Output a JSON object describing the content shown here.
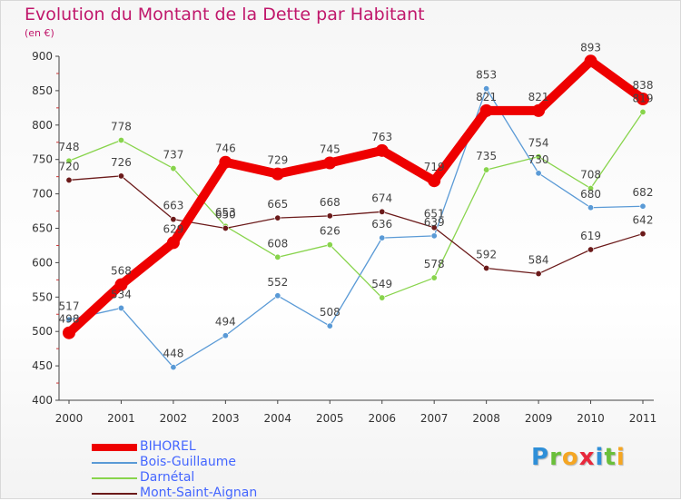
{
  "chart_data": {
    "type": "line",
    "title": "Evolution du Montant de la Dette par Habitant",
    "subtitle": "(en €)",
    "x": [
      "2000",
      "2001",
      "2002",
      "2003",
      "2004",
      "2005",
      "2006",
      "2007",
      "2008",
      "2009",
      "2010",
      "2011"
    ],
    "ylim": [
      400,
      900
    ],
    "yticks": [
      "400",
      "450",
      "500",
      "550",
      "600",
      "650",
      "700",
      "750",
      "800",
      "850",
      "900"
    ],
    "grid": false,
    "legend_position": "bottom",
    "series": [
      {
        "name": "BIHOREL",
        "color": "#ee0000",
        "emphasis": true,
        "values": [
          498,
          568,
          629,
          746,
          729,
          745,
          763,
          719,
          821,
          821,
          893,
          838
        ]
      },
      {
        "name": "Bois-Guillaume",
        "color": "#5a9ad6",
        "emphasis": false,
        "values": [
          517,
          534,
          448,
          494,
          552,
          508,
          636,
          639,
          853,
          730,
          680,
          682
        ]
      },
      {
        "name": "Darnétal",
        "color": "#88d44c",
        "emphasis": false,
        "values": [
          748,
          778,
          737,
          653,
          608,
          626,
          549,
          578,
          735,
          754,
          708,
          819
        ]
      },
      {
        "name": "Mont-Saint-Aignan",
        "color": "#6b1a1a",
        "emphasis": false,
        "values": [
          720,
          726,
          663,
          650,
          665,
          668,
          674,
          651,
          592,
          584,
          619,
          642
        ]
      }
    ]
  },
  "logo": {
    "letters": [
      "P",
      "r",
      "o",
      "x",
      "i",
      "t",
      "i"
    ],
    "colors": [
      "#2f8fd8",
      "#6abf3a",
      "#f5a623",
      "#e8283c",
      "#2f8fd8",
      "#6abf3a",
      "#f5a623"
    ]
  }
}
